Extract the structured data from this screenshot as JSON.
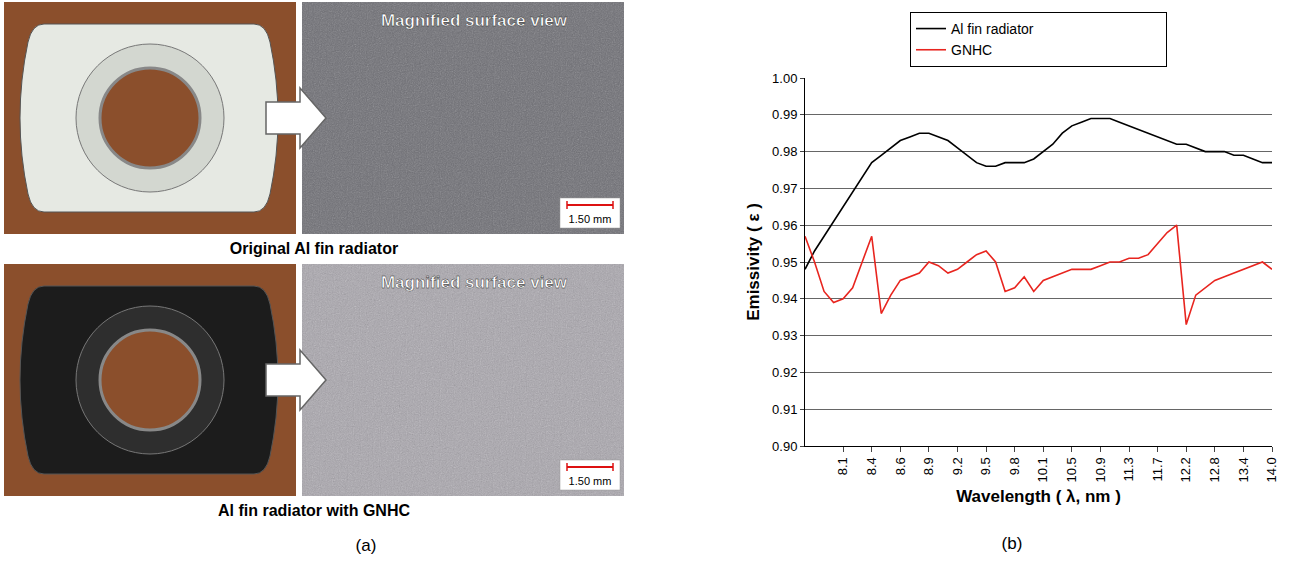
{
  "photo_panel": {
    "panel_label": "(a)",
    "images": [
      {
        "caption": "Original Al fin radiator",
        "inset_title": "Magnified surface view",
        "scale_bar": "1.50 mm"
      },
      {
        "caption": "Al fin radiator with GNHC",
        "inset_title": "Magnified surface view",
        "scale_bar": "1.50 mm"
      }
    ]
  },
  "chart_data": {
    "type": "line",
    "panel_label": "(b)",
    "x_label": "Wavelength ( λ, nm )",
    "y_label": "Emissivity ( ε )",
    "categories": [
      null,
      null,
      null,
      null,
      "8.1",
      null,
      null,
      "8.4",
      null,
      null,
      "8.6",
      null,
      null,
      "8.9",
      null,
      null,
      "9.2",
      null,
      null,
      "9.5",
      null,
      null,
      "9.8",
      null,
      null,
      "10.1",
      null,
      null,
      "10.5",
      null,
      null,
      "10.9",
      null,
      null,
      "11.3",
      null,
      null,
      "11.7",
      null,
      null,
      "12.2",
      null,
      null,
      "12.8",
      null,
      null,
      "13.4",
      null,
      null,
      "14.0"
    ],
    "series": [
      {
        "name": "Al fin radiator",
        "color": "#000000",
        "values": [
          0.948,
          0.953,
          0.957,
          0.961,
          0.965,
          0.969,
          0.973,
          0.977,
          0.979,
          0.981,
          0.983,
          0.984,
          0.985,
          0.985,
          0.984,
          0.983,
          0.981,
          0.979,
          0.977,
          0.976,
          0.976,
          0.977,
          0.977,
          0.977,
          0.978,
          0.98,
          0.982,
          0.985,
          0.987,
          0.988,
          0.989,
          0.989,
          0.989,
          0.988,
          0.987,
          0.986,
          0.985,
          0.984,
          0.983,
          0.982,
          0.982,
          0.981,
          0.98,
          0.98,
          0.98,
          0.979,
          0.979,
          0.978,
          0.977,
          0.977
        ]
      },
      {
        "name": "GNHC",
        "color": "#e8251f",
        "values": [
          0.957,
          0.95,
          0.942,
          0.939,
          0.94,
          0.943,
          0.95,
          0.957,
          0.936,
          0.941,
          0.945,
          0.946,
          0.947,
          0.95,
          0.949,
          0.947,
          0.948,
          0.95,
          0.952,
          0.953,
          0.95,
          0.942,
          0.943,
          0.946,
          0.942,
          0.945,
          0.946,
          0.947,
          0.948,
          0.948,
          0.948,
          0.949,
          0.95,
          0.95,
          0.951,
          0.951,
          0.952,
          0.955,
          0.958,
          0.96,
          0.933,
          0.941,
          0.943,
          0.945,
          0.946,
          0.947,
          0.948,
          0.949,
          0.95,
          0.948
        ]
      }
    ],
    "ylim": [
      0.9,
      1.0
    ],
    "yticks": [
      {
        "value": 0.9,
        "label": "0.90"
      },
      0.91,
      0.92,
      0.93,
      0.94,
      0.95,
      0.96,
      0.97,
      0.98,
      0.99,
      {
        "value": 1.0,
        "label": "1.00"
      }
    ],
    "grid": true,
    "legend": "top"
  }
}
